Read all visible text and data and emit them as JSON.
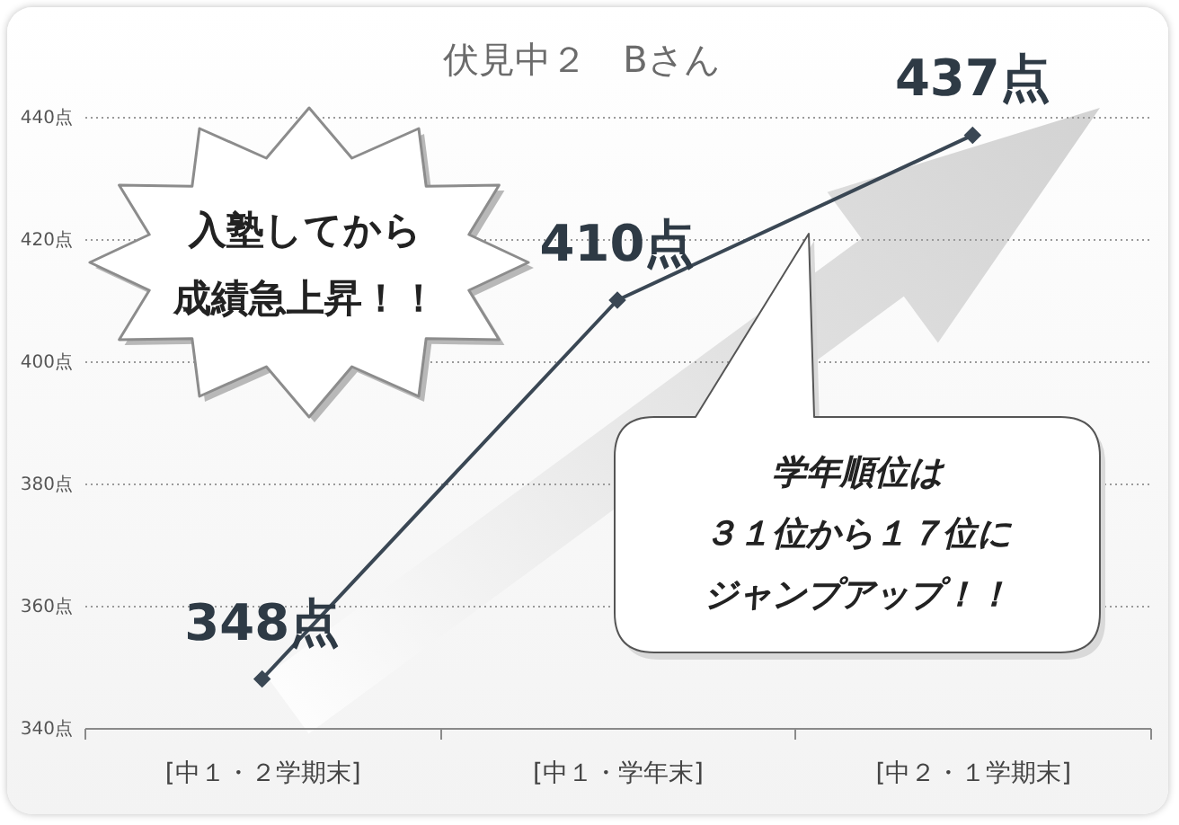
{
  "chart_data": {
    "type": "line",
    "title": "伏見中２　Bさん",
    "categories": [
      "[中１・２学期末]",
      "[中１・学年末]",
      "[中２・１学期末]"
    ],
    "values": [
      348,
      410,
      437
    ],
    "color": "#3a4754",
    "value_labels": [
      "348点",
      "410点",
      "437点"
    ],
    "ylim": [
      340,
      440
    ],
    "yticks": [
      {
        "value": 340,
        "label": "340点"
      },
      {
        "value": 360,
        "label": "360点"
      },
      {
        "value": 380,
        "label": "380点"
      },
      {
        "value": 400,
        "label": "400点"
      },
      {
        "value": 420,
        "label": "420点"
      },
      {
        "value": 440,
        "label": "440点"
      }
    ],
    "grid": "y",
    "marker": "diamond",
    "annotations": [
      "入塾してから成績急上昇！！",
      "学年順位は３１位から１７位にジャンプアップ！！"
    ]
  }
}
